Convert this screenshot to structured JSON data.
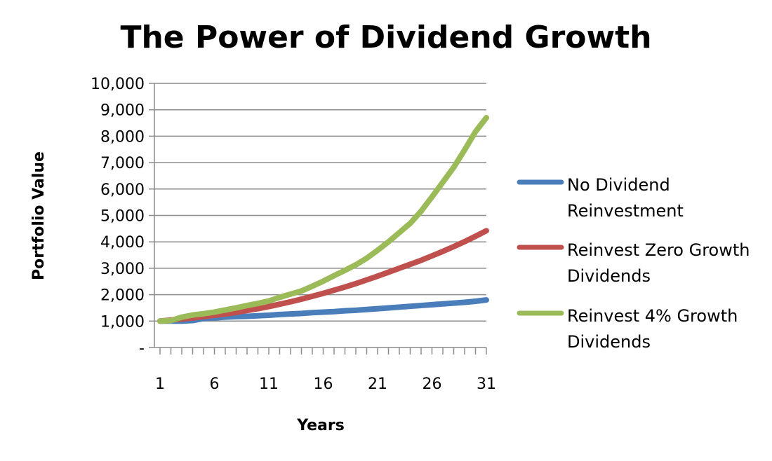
{
  "chart_data": {
    "type": "line",
    "title": "The Power of Dividend Growth",
    "xlabel": "Years",
    "ylabel": "Portfolio Value",
    "ylim": [
      0,
      10000
    ],
    "xlim": [
      1,
      31
    ],
    "grid": true,
    "legend_position": "right",
    "y_ticks": [
      {
        "value": 0,
        "label": "-"
      },
      {
        "value": 1000,
        "label": "1,000"
      },
      {
        "value": 2000,
        "label": "2,000"
      },
      {
        "value": 3000,
        "label": "3,000"
      },
      {
        "value": 4000,
        "label": "4,000"
      },
      {
        "value": 5000,
        "label": "5,000"
      },
      {
        "value": 6000,
        "label": "6,000"
      },
      {
        "value": 7000,
        "label": "7,000"
      },
      {
        "value": 8000,
        "label": "8,000"
      },
      {
        "value": 9000,
        "label": "9,000"
      },
      {
        "value": 10000,
        "label": "10,000"
      }
    ],
    "x_tick_labels": [
      "1",
      "6",
      "11",
      "16",
      "21",
      "26",
      "31"
    ],
    "x": [
      1,
      2,
      3,
      4,
      5,
      6,
      7,
      8,
      9,
      10,
      11,
      12,
      13,
      14,
      15,
      16,
      17,
      18,
      19,
      20,
      21,
      22,
      23,
      24,
      25,
      26,
      27,
      28,
      29,
      30,
      31
    ],
    "series": [
      {
        "name": "No Dividend Reinvestment",
        "legend_lines": [
          "No Dividend",
          "Reinvestment"
        ],
        "color": "#4a7ebb",
        "values": [
          1000,
          1000,
          1000,
          1020,
          1100,
          1120,
          1150,
          1170,
          1180,
          1200,
          1220,
          1250,
          1270,
          1290,
          1320,
          1340,
          1360,
          1390,
          1410,
          1440,
          1470,
          1500,
          1530,
          1560,
          1590,
          1620,
          1650,
          1680,
          1710,
          1750,
          1800
        ]
      },
      {
        "name": "Reinvest Zero Growth Dividends",
        "legend_lines": [
          "Reinvest Zero Growth",
          "Dividends"
        ],
        "color": "#c0504d",
        "values": [
          1000,
          1040,
          1080,
          1120,
          1170,
          1220,
          1270,
          1330,
          1400,
          1470,
          1550,
          1640,
          1730,
          1830,
          1940,
          2050,
          2170,
          2290,
          2420,
          2560,
          2700,
          2850,
          3000,
          3150,
          3300,
          3470,
          3640,
          3820,
          4010,
          4210,
          4420
        ]
      },
      {
        "name": "Reinvest 4% Growth Dividends",
        "legend_lines": [
          "Reinvest 4% Growth",
          "Dividends"
        ],
        "color": "#9bbb59",
        "values": [
          1000,
          1020,
          1150,
          1230,
          1280,
          1340,
          1420,
          1500,
          1590,
          1670,
          1760,
          1900,
          2020,
          2140,
          2320,
          2510,
          2720,
          2920,
          3130,
          3380,
          3680,
          4000,
          4350,
          4700,
          5160,
          5700,
          6260,
          6820,
          7480,
          8170,
          8700
        ]
      }
    ]
  }
}
